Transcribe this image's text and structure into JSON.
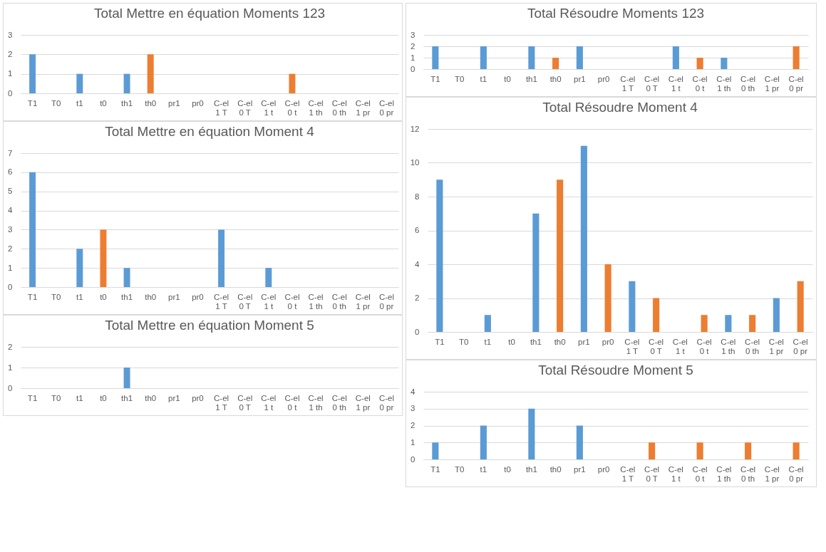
{
  "chart_data": [
    {
      "type": "bar",
      "title": "Total Mettre en équation Moments 123",
      "categories": [
        "T1",
        "T0",
        "t1",
        "t0",
        "th1",
        "th0",
        "pr1",
        "pr0",
        "C-el 1 T",
        "C-el 0 T",
        "C-el 1 t",
        "C-el 0 t",
        "C-el 1 th",
        "C-el 0 th",
        "C-el 1 pr",
        "C-el 0 pr"
      ],
      "values": [
        2,
        0,
        1,
        0,
        1,
        2,
        0,
        0,
        0,
        0,
        0,
        1,
        0,
        0,
        0,
        0
      ],
      "colors": [
        "#5b9bd5",
        "#ed7d31",
        "#5b9bd5",
        "#ed7d31",
        "#5b9bd5",
        "#ed7d31",
        "#5b9bd5",
        "#ed7d31",
        "#5b9bd5",
        "#ed7d31",
        "#5b9bd5",
        "#ed7d31",
        "#5b9bd5",
        "#ed7d31",
        "#5b9bd5",
        "#ed7d31"
      ],
      "ylim": [
        0,
        3
      ],
      "yticks": [
        0,
        1,
        2,
        3
      ],
      "grid": "y"
    },
    {
      "type": "bar",
      "title": "Total Mettre en équation Moment 4",
      "categories": [
        "T1",
        "T0",
        "t1",
        "t0",
        "th1",
        "th0",
        "pr1",
        "pr0",
        "C-el 1 T",
        "C-el 0 T",
        "C-el 1 t",
        "C-el 0 t",
        "C-el 1 th",
        "C-el 0 th",
        "C-el 1 pr",
        "C-el 0 pr"
      ],
      "values": [
        6,
        0,
        2,
        3,
        1,
        0,
        0,
        0,
        3,
        0,
        1,
        0,
        0,
        0,
        0,
        0
      ],
      "colors": [
        "#5b9bd5",
        "#ed7d31",
        "#5b9bd5",
        "#ed7d31",
        "#5b9bd5",
        "#ed7d31",
        "#5b9bd5",
        "#ed7d31",
        "#5b9bd5",
        "#ed7d31",
        "#5b9bd5",
        "#ed7d31",
        "#5b9bd5",
        "#ed7d31",
        "#5b9bd5",
        "#ed7d31"
      ],
      "ylim": [
        0,
        7
      ],
      "yticks": [
        0,
        1,
        2,
        3,
        4,
        5,
        6,
        7
      ],
      "grid": "y"
    },
    {
      "type": "bar",
      "title": "Total Mettre en équation Moment 5",
      "categories": [
        "T1",
        "T0",
        "t1",
        "t0",
        "th1",
        "th0",
        "pr1",
        "pr0",
        "C-el 1 T",
        "C-el 0 T",
        "C-el 1 t",
        "C-el 0 t",
        "C-el 1 th",
        "C-el 0 th",
        "C-el 1 pr",
        "C-el 0 pr"
      ],
      "values": [
        0,
        0,
        0,
        0,
        1,
        0,
        0,
        0,
        0,
        0,
        0,
        0,
        0,
        0,
        0,
        0
      ],
      "colors": [
        "#5b9bd5",
        "#ed7d31",
        "#5b9bd5",
        "#ed7d31",
        "#5b9bd5",
        "#ed7d31",
        "#5b9bd5",
        "#ed7d31",
        "#5b9bd5",
        "#ed7d31",
        "#5b9bd5",
        "#ed7d31",
        "#5b9bd5",
        "#ed7d31",
        "#5b9bd5",
        "#ed7d31"
      ],
      "ylim": [
        0,
        2
      ],
      "yticks": [
        0,
        1,
        2
      ],
      "grid": "y"
    },
    {
      "type": "bar",
      "title": "Total Résoudre Moments 123",
      "categories": [
        "T1",
        "T0",
        "t1",
        "t0",
        "th1",
        "th0",
        "pr1",
        "pr0",
        "C-el 1 T",
        "C-el 0 T",
        "C-el 1 t",
        "C-el 0 t",
        "C-el 1 th",
        "C-el 0 th",
        "C-el 1 pr",
        "C-el 0 pr"
      ],
      "values": [
        2,
        0,
        2,
        0,
        2,
        1,
        2,
        0,
        0,
        0,
        2,
        1,
        1,
        0,
        0,
        2
      ],
      "colors": [
        "#5b9bd5",
        "#ed7d31",
        "#5b9bd5",
        "#ed7d31",
        "#5b9bd5",
        "#ed7d31",
        "#5b9bd5",
        "#ed7d31",
        "#5b9bd5",
        "#ed7d31",
        "#5b9bd5",
        "#ed7d31",
        "#5b9bd5",
        "#ed7d31",
        "#5b9bd5",
        "#ed7d31"
      ],
      "ylim": [
        0,
        3
      ],
      "yticks": [
        0,
        1,
        2,
        3
      ],
      "grid": "y"
    },
    {
      "type": "bar",
      "title": "Total Résoudre Moment 4",
      "categories": [
        "T1",
        "T0",
        "t1",
        "t0",
        "th1",
        "th0",
        "pr1",
        "pr0",
        "C-el 1 T",
        "C-el 0 T",
        "C-el 1 t",
        "C-el 0 t",
        "C-el 1 th",
        "C-el 0 th",
        "C-el 1 pr",
        "C-el 0 pr"
      ],
      "values": [
        9,
        0,
        1,
        0,
        7,
        9,
        11,
        4,
        3,
        2,
        0,
        1,
        1,
        1,
        2,
        3
      ],
      "colors": [
        "#5b9bd5",
        "#ed7d31",
        "#5b9bd5",
        "#ed7d31",
        "#5b9bd5",
        "#ed7d31",
        "#5b9bd5",
        "#ed7d31",
        "#5b9bd5",
        "#ed7d31",
        "#5b9bd5",
        "#ed7d31",
        "#5b9bd5",
        "#ed7d31",
        "#5b9bd5",
        "#ed7d31"
      ],
      "ylim": [
        0,
        12
      ],
      "yticks": [
        0,
        2,
        4,
        6,
        8,
        10,
        12
      ],
      "grid": "y"
    },
    {
      "type": "bar",
      "title": "Total Résoudre Moment 5",
      "categories": [
        "T1",
        "T0",
        "t1",
        "t0",
        "th1",
        "th0",
        "pr1",
        "pr0",
        "C-el 1 T",
        "C-el 0 T",
        "C-el 1 t",
        "C-el 0 t",
        "C-el 1 th",
        "C-el 0 th",
        "C-el 1 pr",
        "C-el 0 pr"
      ],
      "values": [
        1,
        0,
        2,
        0,
        3,
        0,
        2,
        0,
        0,
        1,
        0,
        1,
        0,
        1,
        0,
        1
      ],
      "colors": [
        "#5b9bd5",
        "#ed7d31",
        "#5b9bd5",
        "#ed7d31",
        "#5b9bd5",
        "#ed7d31",
        "#5b9bd5",
        "#ed7d31",
        "#5b9bd5",
        "#ed7d31",
        "#5b9bd5",
        "#ed7d31",
        "#5b9bd5",
        "#ed7d31",
        "#5b9bd5",
        "#ed7d31"
      ],
      "ylim": [
        0,
        4
      ],
      "yticks": [
        0,
        1,
        2,
        3,
        4
      ],
      "grid": "y"
    }
  ]
}
